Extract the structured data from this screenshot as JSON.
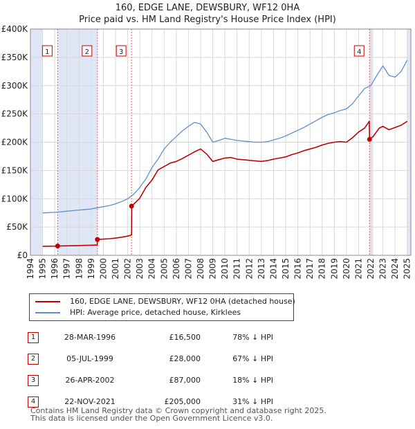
{
  "chart_data": {
    "type": "line",
    "title": "160, EDGE LANE, DEWSBURY, WF12 0HA",
    "subtitle": "Price paid vs. HM Land Registry's House Price Index (HPI)",
    "xlim": [
      1994,
      2025.3
    ],
    "ylim": [
      0,
      400000
    ],
    "y_ticks": [
      0,
      50000,
      100000,
      150000,
      200000,
      250000,
      300000,
      350000,
      400000
    ],
    "y_tick_labels": [
      "£0",
      "£50K",
      "£100K",
      "£150K",
      "£200K",
      "£250K",
      "£300K",
      "£350K",
      "£400K"
    ],
    "x_ticks": [
      1994,
      1995,
      1996,
      1997,
      1998,
      1999,
      2000,
      2001,
      2002,
      2003,
      2004,
      2005,
      2006,
      2007,
      2008,
      2009,
      2010,
      2011,
      2012,
      2013,
      2014,
      2015,
      2016,
      2017,
      2018,
      2019,
      2020,
      2021,
      2022,
      2023,
      2024,
      2025
    ],
    "x_tick_labels": [
      "1994",
      "1995",
      "1996",
      "1997",
      "1998",
      "1999",
      "2000",
      "2001",
      "2002",
      "2003",
      "2004",
      "2005",
      "2006",
      "2007",
      "2008",
      "2009",
      "2010",
      "2011",
      "2012",
      "2013",
      "2014",
      "2015",
      "2016",
      "2017",
      "2018",
      "2019",
      "2020",
      "2021",
      "2022",
      "2023",
      "2024",
      "2025"
    ],
    "grid": true,
    "series": [
      {
        "name": "160, EDGE LANE, DEWSBURY, WF12 0HA (detached house)",
        "color": "#c00000",
        "x": [
          1995.0,
          1995.5,
          1996.0,
          1996.24,
          1996.5,
          1997.0,
          1997.5,
          1998.0,
          1998.5,
          1999.0,
          1999.5,
          1999.51,
          2000.0,
          2000.5,
          2001.0,
          2001.5,
          2002.0,
          2002.32,
          2002.33,
          2003.0,
          2003.5,
          2004.0,
          2004.5,
          2005.0,
          2005.5,
          2006.0,
          2006.5,
          2007.0,
          2007.5,
          2008.0,
          2008.5,
          2009.0,
          2009.5,
          2010.0,
          2010.5,
          2011.0,
          2011.5,
          2012.0,
          2012.5,
          2013.0,
          2013.5,
          2014.0,
          2014.5,
          2015.0,
          2015.5,
          2016.0,
          2016.5,
          2017.0,
          2017.5,
          2018.0,
          2018.5,
          2019.0,
          2019.5,
          2020.0,
          2020.5,
          2021.0,
          2021.5,
          2021.88,
          2021.9,
          2022.2,
          2022.7,
          2023.0,
          2023.5,
          2024.0,
          2024.5,
          2025.0
        ],
        "y": [
          16000,
          16100,
          16300,
          16500,
          16600,
          16800,
          17000,
          17300,
          17600,
          17900,
          18200,
          28000,
          28600,
          29400,
          30500,
          32000,
          34000,
          36000,
          87000,
          101000,
          120000,
          133000,
          151000,
          157000,
          163000,
          166000,
          171000,
          177000,
          183000,
          188000,
          179000,
          166000,
          169000,
          172000,
          173000,
          170000,
          169000,
          168000,
          167000,
          166000,
          167500,
          170000,
          172000,
          174000,
          178000,
          181000,
          185000,
          188000,
          191000,
          195000,
          198000,
          200000,
          201000,
          200000,
          208000,
          218000,
          225000,
          237000,
          205000,
          210000,
          225000,
          228000,
          222000,
          226000,
          230000,
          237000
        ]
      },
      {
        "name": "HPI: Average price, detached house, Kirklees",
        "color": "#5b8fd0",
        "x": [
          1995.0,
          1995.5,
          1996.0,
          1996.5,
          1997.0,
          1997.5,
          1998.0,
          1998.5,
          1999.0,
          1999.5,
          2000.0,
          2000.5,
          2001.0,
          2001.5,
          2002.0,
          2002.5,
          2003.0,
          2003.5,
          2004.0,
          2004.5,
          2005.0,
          2005.5,
          2006.0,
          2006.5,
          2007.0,
          2007.5,
          2008.0,
          2008.5,
          2009.0,
          2009.5,
          2010.0,
          2010.5,
          2011.0,
          2011.5,
          2012.0,
          2012.5,
          2013.0,
          2013.5,
          2014.0,
          2014.5,
          2015.0,
          2015.5,
          2016.0,
          2016.5,
          2017.0,
          2017.5,
          2018.0,
          2018.5,
          2019.0,
          2019.5,
          2020.0,
          2020.5,
          2021.0,
          2021.5,
          2022.0,
          2022.5,
          2023.0,
          2023.5,
          2024.0,
          2024.5,
          2025.0
        ],
        "y": [
          75000,
          75500,
          76000,
          77000,
          78000,
          79000,
          80000,
          81000,
          82000,
          84000,
          86000,
          88000,
          91000,
          95000,
          100000,
          108000,
          120000,
          135000,
          155000,
          170000,
          188000,
          200000,
          210000,
          220000,
          228000,
          235000,
          232000,
          218000,
          200000,
          203000,
          207000,
          205000,
          203000,
          202000,
          201000,
          200000,
          200000,
          201000,
          204000,
          207000,
          211000,
          216000,
          221000,
          226000,
          232000,
          238000,
          244000,
          249000,
          252000,
          256000,
          259000,
          268000,
          282000,
          295000,
          300000,
          318000,
          335000,
          318000,
          315000,
          325000,
          345000
        ]
      }
    ],
    "sales": [
      {
        "label": "1",
        "x": 1996.24,
        "y": 16500
      },
      {
        "label": "2",
        "x": 1999.51,
        "y": 28000
      },
      {
        "label": "3",
        "x": 2002.32,
        "y": 87000
      },
      {
        "label": "4",
        "x": 2021.9,
        "y": 205000
      }
    ],
    "shaded_regions": [
      {
        "from": 1994,
        "to": 1995
      },
      {
        "from": 1996.24,
        "to": 1999.51
      },
      {
        "from": 2021.9,
        "to": 2022.2
      },
      {
        "from": 2025.0,
        "to": 2025.3
      }
    ]
  },
  "legend": [
    {
      "label": "160, EDGE LANE, DEWSBURY, WF12 0HA (detached house)",
      "color": "#c00000"
    },
    {
      "label": "HPI: Average price, detached house, Kirklees",
      "color": "#5b8fd0"
    }
  ],
  "table": [
    {
      "num": "1",
      "date": "28-MAR-1996",
      "price": "£16,500",
      "hpi": "78% ↓ HPI"
    },
    {
      "num": "2",
      "date": "05-JUL-1999",
      "price": "£28,000",
      "hpi": "67% ↓ HPI"
    },
    {
      "num": "3",
      "date": "26-APR-2002",
      "price": "£87,000",
      "hpi": "18% ↓ HPI"
    },
    {
      "num": "4",
      "date": "22-NOV-2021",
      "price": "£205,000",
      "hpi": "31% ↓ HPI"
    }
  ],
  "footer": {
    "line1": "Contains HM Land Registry data © Crown copyright and database right 2025.",
    "line2": "This data is licensed under the Open Government Licence v3.0."
  }
}
